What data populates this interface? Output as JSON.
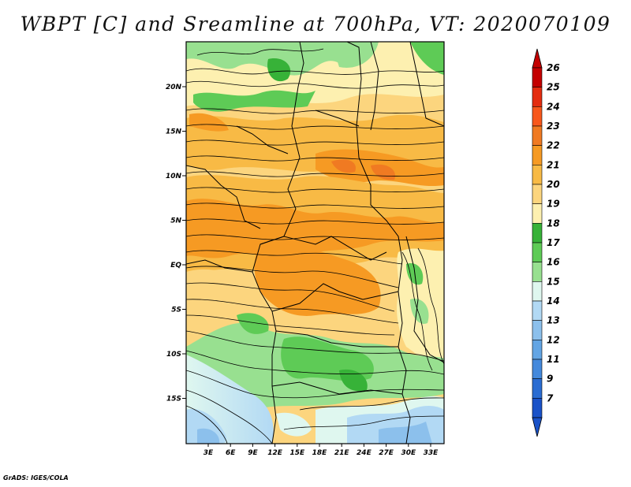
{
  "title": "WBPT [C] and Sreamline at 700hPa, VT: 2020070109",
  "credit": "GrADS: IGES/COLA",
  "map": {
    "variable": "wet-bulb potential temperature",
    "units": "C",
    "level": "700hPa",
    "valid_time": "2020070109",
    "lon_range": [
      0,
      35
    ],
    "lat_range": [
      -20,
      25
    ],
    "lat_ticks": [
      "20N",
      "15N",
      "10N",
      "5N",
      "EQ",
      "5S",
      "10S",
      "15S"
    ],
    "lon_ticks": [
      "3E",
      "6E",
      "9E",
      "12E",
      "15E",
      "18E",
      "21E",
      "24E",
      "27E",
      "30E",
      "33E"
    ]
  },
  "colorbar": {
    "labels": [
      "26",
      "25",
      "24",
      "23",
      "22",
      "21",
      "20",
      "19",
      "18",
      "17",
      "16",
      "15",
      "14",
      "13",
      "12",
      "11",
      "9",
      "7"
    ],
    "colors": [
      "#c40000",
      "#e42d10",
      "#f8581c",
      "#f07a22",
      "#f69a23",
      "#f8ba45",
      "#fcd57e",
      "#fdf0b0",
      "#37b238",
      "#5ecb56",
      "#98e090",
      "#dff7ef",
      "#b2d9f4",
      "#8cc0ec",
      "#63a5e4",
      "#4489dc",
      "#2a6cd2",
      "#1a52c8"
    ]
  }
}
